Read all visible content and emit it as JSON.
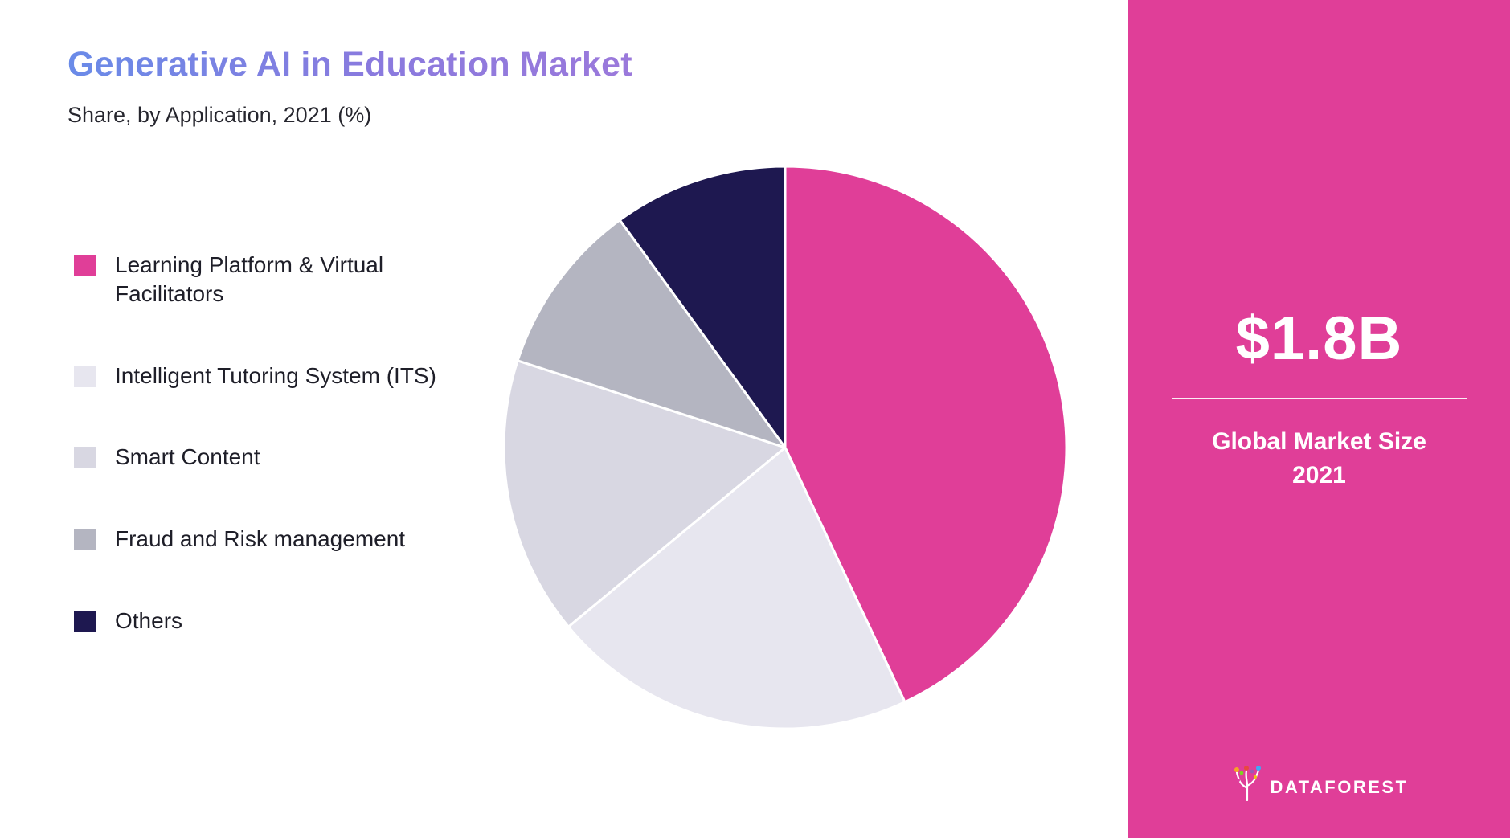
{
  "header": {
    "title": "Generative AI in Education Market",
    "subtitle": "Share, by Application, 2021 (%)"
  },
  "chart_data": {
    "type": "pie",
    "title": "Generative AI in Education Market",
    "subtitle": "Share, by Application, 2021 (%)",
    "labels": [
      "Learning Platform & Virtual Facilitators",
      "Intelligent Tutoring System (ITS)",
      "Smart Content",
      "Fraud and Risk management",
      "Others"
    ],
    "values": [
      43,
      21,
      16,
      10,
      10
    ],
    "colors": [
      "#e03e98",
      "#e7e6ef",
      "#d8d7e2",
      "#b4b5c1",
      "#1e1850"
    ],
    "legend_position": "left",
    "start_angle_deg": -90,
    "direction": "clockwise"
  },
  "sidebar": {
    "market_size": "$1.8B",
    "caption_line1": "Global Market Size",
    "caption_line2": "2021",
    "background_color": "#e03e98",
    "logo_text": "DATAFOREST"
  }
}
